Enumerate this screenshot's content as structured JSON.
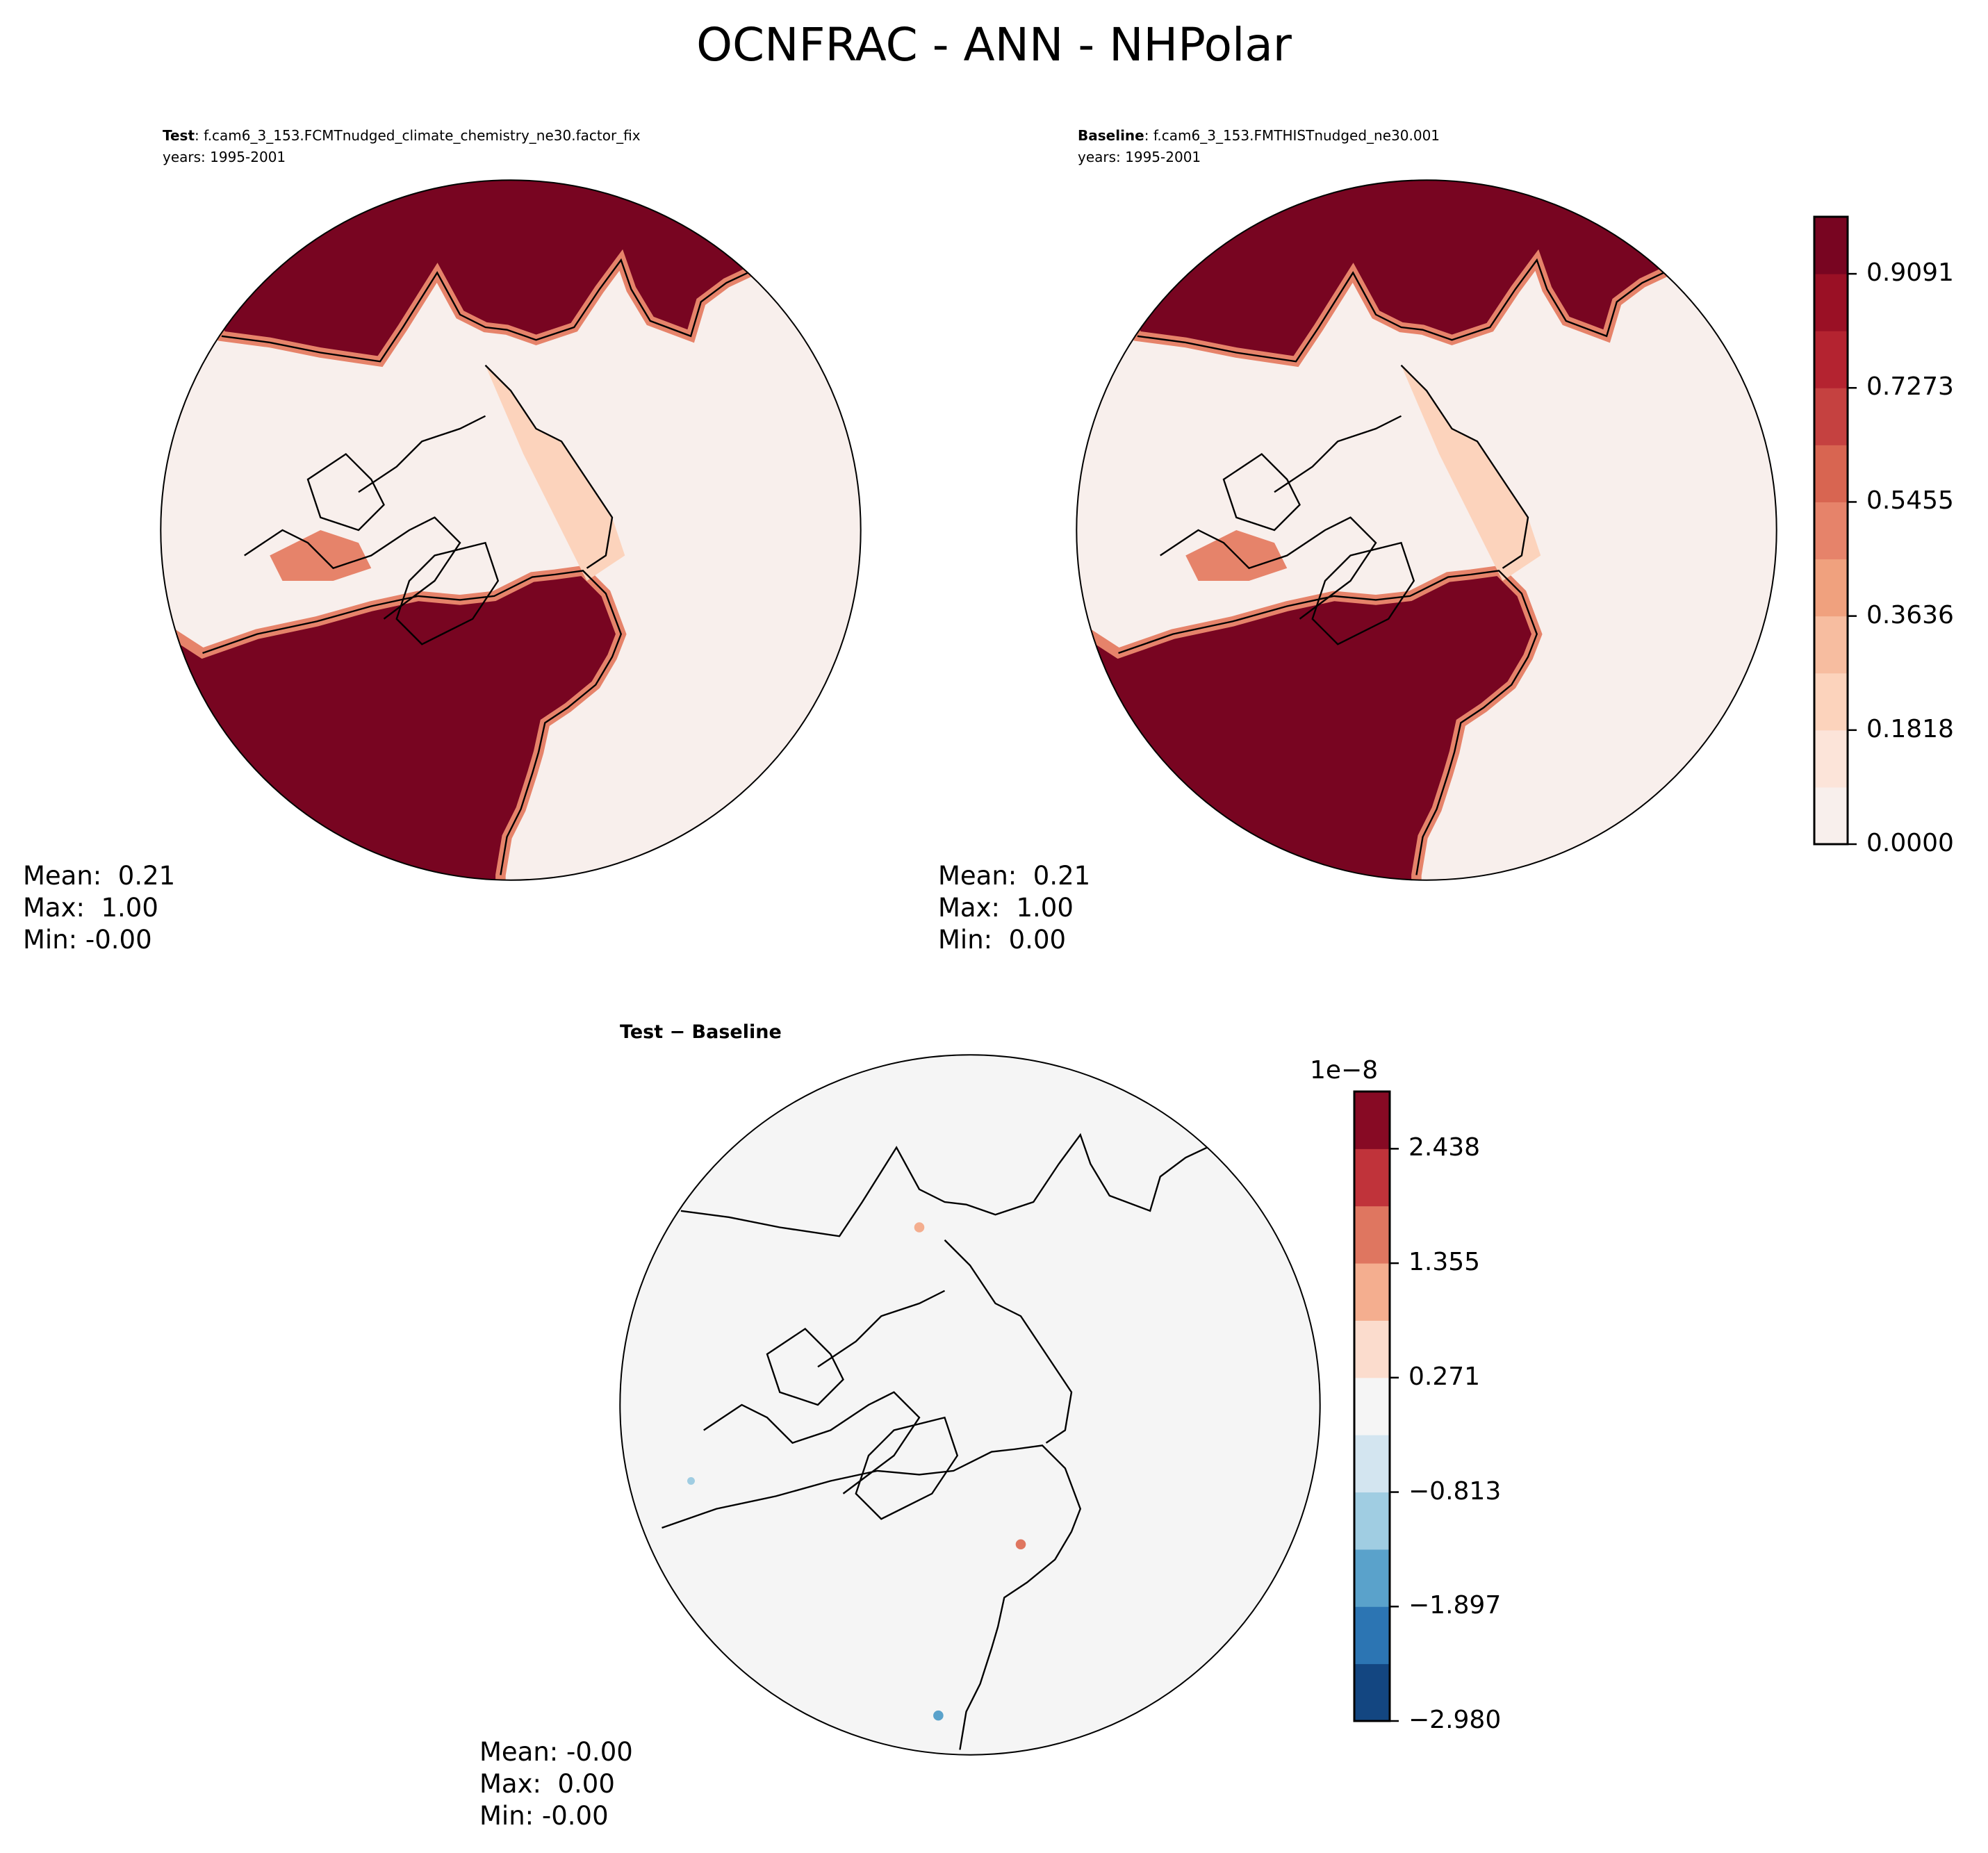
{
  "figure": {
    "title": "OCNFRAC - ANN - NHPolar"
  },
  "panels": {
    "test": {
      "label": "Test",
      "case": ": f.cam6_3_153.FCMTnudged_climate_chemistry_ne30.factor_fix",
      "years": "years: 1995-2001",
      "stats": {
        "mean": "Mean:  0.21",
        "max": "Max:  1.00",
        "min": "Min: -0.00"
      }
    },
    "baseline": {
      "label": "Baseline",
      "case": ": f.cam6_3_153.FMTHISTnudged_ne30.001",
      "years": "years: 1995-2001",
      "stats": {
        "mean": "Mean:  0.21",
        "max": "Max:  1.00",
        "min": "Min:  0.00"
      }
    },
    "diff": {
      "label": "Test − Baseline",
      "stats": {
        "mean": "Mean: -0.00",
        "max": "Max:  0.00",
        "min": "Min: -0.00"
      }
    }
  },
  "chart_data": [
    {
      "type": "heatmap",
      "projection": "north-polar-stereographic",
      "panel": "test",
      "colorbar": {
        "range": [
          0.0,
          1.0
        ],
        "ticks": [
          "0.0000",
          "0.1818",
          "0.3636",
          "0.5455",
          "0.7273",
          "0.9091"
        ],
        "colors": [
          "#f8efec",
          "#fce4d9",
          "#fcd3bc",
          "#f7bda0",
          "#f0a17e",
          "#e6836a",
          "#d86551",
          "#c54140",
          "#b42330",
          "#9a1025",
          "#780521"
        ]
      }
    },
    {
      "type": "heatmap",
      "projection": "north-polar-stereographic",
      "panel": "baseline",
      "colorbar": "shared with test"
    },
    {
      "type": "heatmap",
      "projection": "north-polar-stereographic",
      "panel": "diff",
      "colorbar": {
        "range": [
          -2.98,
          2.98
        ],
        "scale_label": "1e−8",
        "ticks": [
          "−2.980",
          "−1.897",
          "−0.813",
          "0.271",
          "1.355",
          "2.438"
        ],
        "colors": [
          "#134681",
          "#2c75b3",
          "#5aa2cb",
          "#a0cde2",
          "#d3e5f0",
          "#f5f5f5",
          "#fbdccd",
          "#f4ae8f",
          "#df7660",
          "#c0333a",
          "#870a24"
        ]
      }
    }
  ]
}
